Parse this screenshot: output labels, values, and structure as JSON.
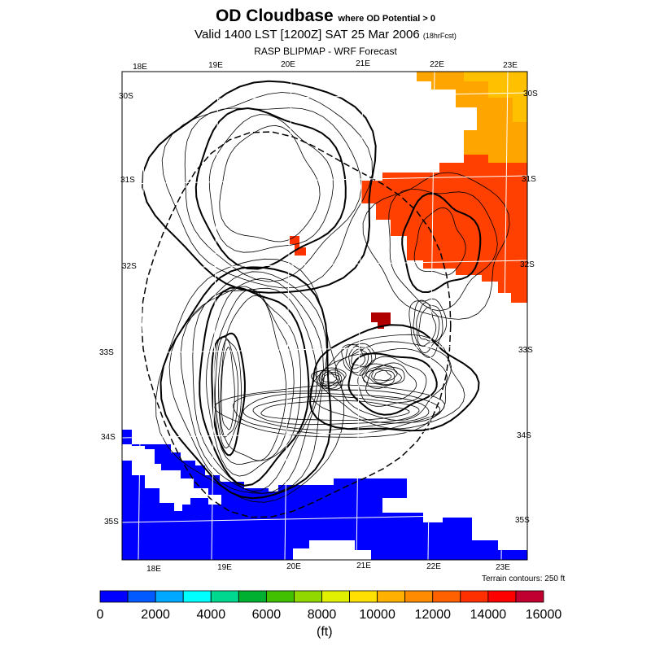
{
  "header": {
    "title": "OD Cloudbase",
    "title_note": "where OD Potential > 0",
    "valid_line": "Valid 1400 LST [1200Z] SAT 25 Mar 2006",
    "forecast_note": "(18hrFcst)",
    "subtitle": "RASP BLIPMAP - WRF Forecast"
  },
  "map": {
    "top_lon_labels": [
      "18E",
      "19E",
      "20E",
      "21E",
      "22E",
      "23E"
    ],
    "bottom_lon_labels": [
      "18E",
      "19E",
      "20E",
      "21E",
      "22E",
      "23E"
    ],
    "left_lat_labels": [
      "30S",
      "31S",
      "32S",
      "33S",
      "34S",
      "35S"
    ],
    "right_lat_labels": [
      "30S",
      "31S",
      "32S",
      "33S",
      "34S",
      "35S"
    ],
    "terrain_note": "Terrain contours: 250 ft",
    "lon_range": [
      17.5,
      23.3
    ],
    "lat_range": [
      -35.5,
      -29.8
    ],
    "colors": {
      "blue": "#0000ff",
      "orange_red": "#ff4000",
      "red_orange": "#ff3300",
      "dark_red": "#b00000",
      "orange": "#ffa500",
      "yellow_orange": "#ffc000"
    }
  },
  "colorbar": {
    "colors": [
      "#0000ff",
      "#005aff",
      "#00a8ff",
      "#00ffff",
      "#00d890",
      "#00b030",
      "#40c000",
      "#90d800",
      "#e0f000",
      "#ffe000",
      "#ffb000",
      "#ff8c00",
      "#ff6000",
      "#ff3000",
      "#ff0000",
      "#c00030"
    ],
    "tick_labels": [
      "0",
      "2000",
      "4000",
      "6000",
      "8000",
      "10000",
      "12000",
      "14000",
      "16000"
    ],
    "units": "(ft)"
  }
}
